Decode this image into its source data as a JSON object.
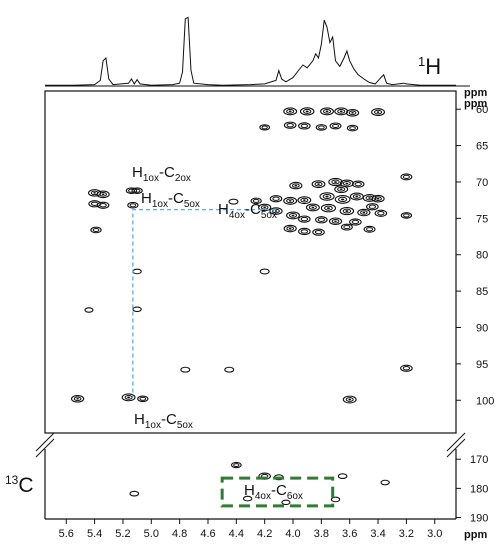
{
  "chart_data": {
    "type": "scatter",
    "subtype": "2D HSQC NMR contour spectrum with 1H projection",
    "x_axis": {
      "unit_label": "ppm",
      "reversed": true,
      "ticks": [
        "5.6",
        "5.4",
        "5.2",
        "5.0",
        "4.8",
        "4.6",
        "4.4",
        "4.2",
        "4.0",
        "3.8",
        "3.6",
        "3.4",
        "3.2",
        "3.0"
      ],
      "range": [
        5.75,
        2.85
      ]
    },
    "y_axis_main": {
      "unit_label": "ppm",
      "reversed": true,
      "ticks": [
        "60",
        "65",
        "70",
        "75",
        "80",
        "85",
        "90",
        "95",
        "100"
      ],
      "range": [
        57.5,
        104.5
      ]
    },
    "y_axis_lower": {
      "unit_label": "ppm",
      "reversed": true,
      "ticks": [
        "170",
        "180",
        "190"
      ],
      "range": [
        166.5,
        190.5
      ]
    },
    "proton_label": {
      "prefix": "1",
      "text": "H"
    },
    "carbon_label": {
      "prefix": "13",
      "text": "C"
    },
    "proton_projection": [
      [
        5.75,
        0.01
      ],
      [
        5.55,
        0.01
      ],
      [
        5.4,
        0.02
      ],
      [
        5.36,
        0.08
      ],
      [
        5.34,
        0.36
      ],
      [
        5.32,
        0.4
      ],
      [
        5.3,
        0.1
      ],
      [
        5.27,
        0.02
      ],
      [
        5.16,
        0.04
      ],
      [
        5.14,
        0.1
      ],
      [
        5.12,
        0.03
      ],
      [
        5.1,
        0.09
      ],
      [
        5.08,
        0.03
      ],
      [
        5.0,
        0.01
      ],
      [
        4.85,
        0.02
      ],
      [
        4.8,
        0.04
      ],
      [
        4.78,
        0.2
      ],
      [
        4.76,
        0.96
      ],
      [
        4.74,
        0.98
      ],
      [
        4.72,
        0.22
      ],
      [
        4.7,
        0.04
      ],
      [
        4.6,
        0.02
      ],
      [
        4.5,
        0.01
      ],
      [
        4.3,
        0.02
      ],
      [
        4.2,
        0.03
      ],
      [
        4.12,
        0.08
      ],
      [
        4.1,
        0.22
      ],
      [
        4.08,
        0.1
      ],
      [
        4.05,
        0.06
      ],
      [
        4.0,
        0.12
      ],
      [
        3.97,
        0.2
      ],
      [
        3.93,
        0.3
      ],
      [
        3.9,
        0.26
      ],
      [
        3.86,
        0.36
      ],
      [
        3.84,
        0.46
      ],
      [
        3.82,
        0.4
      ],
      [
        3.8,
        0.6
      ],
      [
        3.78,
        0.94
      ],
      [
        3.76,
        0.84
      ],
      [
        3.74,
        0.62
      ],
      [
        3.72,
        0.7
      ],
      [
        3.7,
        0.36
      ],
      [
        3.67,
        0.28
      ],
      [
        3.64,
        0.4
      ],
      [
        3.62,
        0.5
      ],
      [
        3.6,
        0.36
      ],
      [
        3.57,
        0.24
      ],
      [
        3.54,
        0.16
      ],
      [
        3.5,
        0.1
      ],
      [
        3.46,
        0.05
      ],
      [
        3.42,
        0.03
      ],
      [
        3.38,
        0.12
      ],
      [
        3.36,
        0.16
      ],
      [
        3.34,
        0.04
      ],
      [
        3.3,
        0.02
      ],
      [
        3.22,
        0.04
      ],
      [
        3.2,
        0.03
      ],
      [
        3.1,
        0.01
      ],
      [
        2.85,
        0.01
      ]
    ],
    "cross_peaks_main": [
      [
        4.02,
        60.3,
        1.0
      ],
      [
        3.9,
        60.3,
        1.1
      ],
      [
        3.76,
        60.3,
        1.0
      ],
      [
        3.66,
        60.3,
        1.0
      ],
      [
        3.58,
        60.5,
        0.9
      ],
      [
        3.4,
        60.4,
        1.0
      ],
      [
        4.02,
        62.2,
        0.8
      ],
      [
        3.92,
        62.3,
        0.8
      ],
      [
        3.8,
        62.5,
        0.6
      ],
      [
        3.7,
        62.3,
        0.7
      ],
      [
        3.58,
        62.6,
        0.6
      ],
      [
        4.2,
        62.5,
        0.5
      ],
      [
        5.4,
        71.5,
        0.9
      ],
      [
        5.34,
        71.7,
        0.9
      ],
      [
        5.4,
        73.0,
        0.8
      ],
      [
        5.34,
        73.2,
        0.8
      ],
      [
        5.14,
        71.2,
        0.6
      ],
      [
        5.1,
        71.2,
        0.6
      ],
      [
        5.13,
        73.2,
        0.6
      ],
      [
        5.39,
        76.6,
        0.6
      ],
      [
        3.98,
        70.5,
        0.9
      ],
      [
        3.82,
        70.3,
        1.0
      ],
      [
        3.7,
        70.0,
        1.1
      ],
      [
        3.62,
        70.2,
        1.0
      ],
      [
        3.66,
        71.0,
        1.0
      ],
      [
        3.54,
        70.3,
        0.8
      ],
      [
        3.76,
        72.0,
        1.2
      ],
      [
        3.65,
        72.4,
        1.3
      ],
      [
        3.55,
        72.0,
        1.0
      ],
      [
        3.46,
        72.2,
        1.0
      ],
      [
        3.4,
        72.3,
        0.9
      ],
      [
        4.12,
        72.3,
        0.8
      ],
      [
        4.02,
        72.6,
        1.0
      ],
      [
        3.92,
        72.5,
        1.0
      ],
      [
        3.86,
        73.5,
        1.0
      ],
      [
        3.75,
        73.6,
        1.2
      ],
      [
        3.62,
        74.0,
        1.1
      ],
      [
        3.5,
        74.2,
        0.9
      ],
      [
        3.44,
        73.4,
        0.8
      ],
      [
        3.38,
        74.3,
        0.8
      ],
      [
        4.2,
        73.5,
        0.9
      ],
      [
        4.26,
        72.6,
        0.6
      ],
      [
        4.12,
        74.0,
        0.9
      ],
      [
        4.0,
        74.6,
        1.0
      ],
      [
        3.92,
        75.1,
        0.8
      ],
      [
        3.8,
        75.2,
        0.8
      ],
      [
        3.7,
        75.4,
        0.9
      ],
      [
        3.56,
        75.5,
        0.8
      ],
      [
        3.2,
        69.3,
        0.7
      ],
      [
        3.2,
        74.6,
        0.6
      ],
      [
        4.42,
        72.7,
        0.4
      ],
      [
        4.02,
        76.4,
        0.9
      ],
      [
        3.92,
        76.8,
        0.8
      ],
      [
        3.82,
        76.9,
        0.8
      ],
      [
        3.62,
        76.2,
        0.7
      ],
      [
        3.46,
        76.5,
        0.7
      ],
      [
        4.2,
        82.3,
        0.4
      ],
      [
        5.1,
        82.3,
        0.3
      ],
      [
        5.1,
        87.5,
        0.3
      ],
      [
        5.44,
        87.6,
        0.25
      ],
      [
        4.76,
        95.8,
        0.4
      ],
      [
        4.45,
        95.8,
        0.4
      ],
      [
        3.2,
        95.6,
        0.8
      ],
      [
        5.52,
        99.8,
        0.9
      ],
      [
        5.16,
        99.6,
        1.0
      ],
      [
        5.06,
        99.8,
        0.6
      ],
      [
        3.6,
        99.9,
        1.0
      ]
    ],
    "cross_peaks_lower": [
      [
        4.4,
        172.0,
        0.5
      ],
      [
        4.2,
        175.8,
        0.8
      ],
      [
        4.1,
        176.2,
        0.4
      ],
      [
        3.65,
        175.8,
        0.35
      ],
      [
        3.35,
        178.0,
        0.3
      ],
      [
        5.12,
        181.8,
        0.35
      ],
      [
        4.32,
        183.5,
        0.3
      ],
      [
        4.05,
        184.8,
        0.25
      ],
      [
        3.7,
        183.8,
        0.3
      ]
    ],
    "annotations": [
      {
        "main": "H",
        "sub1": "1ox",
        "dash": "-",
        "main2": "C",
        "sub2": "2ox"
      },
      {
        "main": "H",
        "sub1": "1ox",
        "dash": "-",
        "main2": "C",
        "sub2": "5ox"
      },
      {
        "main": "H",
        "sub1": "4ox",
        "dash": "-",
        "main2": "C",
        "sub2": "5ox"
      },
      {
        "main": "H",
        "sub1": "1ox",
        "dash": "-",
        "main2": "C",
        "sub2": "5ox"
      },
      {
        "main": "H",
        "sub1": "4ox",
        "dash": "-",
        "main2": "C",
        "sub2": "6ox"
      }
    ],
    "correlation_line": {
      "h1": 5.13,
      "h4": 4.12,
      "c5": 73.8,
      "c1": 99.6
    },
    "highlight_box": {
      "x_range": [
        4.5,
        3.72
      ],
      "y_range": [
        176.5,
        186.0
      ]
    },
    "colors": {
      "axis": "#111111",
      "contour": "#111111",
      "correlation_line": "#5aaee0",
      "highlight_box": "#2e7d32"
    }
  }
}
